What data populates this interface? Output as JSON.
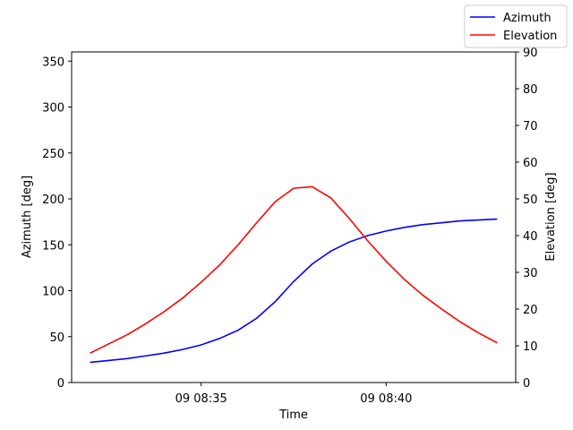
{
  "chart_data": {
    "type": "line",
    "xlabel": "Time",
    "ylabel_left": "Azimuth [deg]",
    "ylabel_right": "Elevation [deg]",
    "x": [
      "08:32:00",
      "08:32:30",
      "08:33:00",
      "08:33:30",
      "08:34:00",
      "08:34:30",
      "08:35:00",
      "08:35:30",
      "08:36:00",
      "08:36:30",
      "08:37:00",
      "08:37:30",
      "08:38:00",
      "08:38:30",
      "08:39:00",
      "08:39:30",
      "08:40:00",
      "08:40:30",
      "08:41:00",
      "08:41:30",
      "08:42:00",
      "08:42:30",
      "08:43:00"
    ],
    "xlim": [
      "08:31:30",
      "08:43:30"
    ],
    "x_ticks": [
      "08:35:00",
      "08:40:00"
    ],
    "x_tick_labels": [
      "09 08:35",
      "09 08:40"
    ],
    "ylim_left": [
      0,
      360
    ],
    "y_ticks_left": [
      0,
      50,
      100,
      150,
      200,
      250,
      300,
      350
    ],
    "ylim_right": [
      0,
      90
    ],
    "y_ticks_right": [
      0,
      10,
      20,
      30,
      40,
      50,
      60,
      70,
      80,
      90
    ],
    "legend_position": "top-right",
    "grid": false,
    "series": [
      {
        "name": "Azimuth",
        "axis": "left",
        "color": "#0000ff",
        "values": [
          22,
          24,
          26,
          29,
          32,
          36,
          41,
          48,
          57,
          70,
          88,
          110,
          129,
          143,
          153,
          160,
          165,
          169,
          172,
          174,
          176,
          177,
          178
        ]
      },
      {
        "name": "Elevation",
        "axis": "right",
        "color": "#ff0000",
        "values": [
          8,
          10.5,
          13,
          16,
          19.3,
          23,
          27.3,
          32,
          37.5,
          43.5,
          49.2,
          52.9,
          53.3,
          50.3,
          44.7,
          38.6,
          33,
          28,
          23.7,
          20,
          16.5,
          13.5,
          10.8
        ]
      }
    ]
  }
}
